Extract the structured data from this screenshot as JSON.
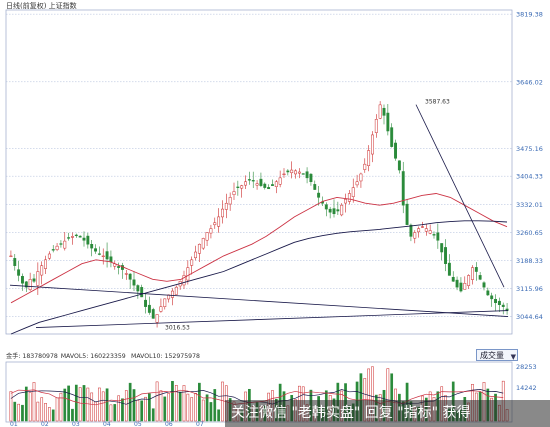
{
  "header": {
    "title": "日线(前复权)  上证指数"
  },
  "chart_data": [
    {
      "type": "candlestick",
      "title": "日线(前复权)  上证指数",
      "y_axis_ticks": [
        3819.38,
        3646.02,
        3475.16,
        3404.33,
        3332.01,
        3260.65,
        3188.33,
        3115.96,
        3044.64
      ],
      "ylim": [
        3000,
        3830
      ],
      "annotations": [
        {
          "text": "3587.63",
          "value": 3587.63
        },
        {
          "text": "3016.53",
          "value": 3016.53
        }
      ],
      "x_ticks": [
        "01",
        "02",
        "03",
        "04",
        "05",
        "06",
        "07"
      ],
      "candle_count": 130,
      "close_series_approx": [
        3200,
        3175,
        3150,
        3130,
        3120,
        3140,
        3135,
        3160,
        3175,
        3190,
        3205,
        3215,
        3225,
        3230,
        3238,
        3245,
        3250,
        3252,
        3248,
        3240,
        3230,
        3220,
        3212,
        3205,
        3200,
        3192,
        3185,
        3180,
        3170,
        3165,
        3155,
        3140,
        3125,
        3110,
        3095,
        3070,
        3055,
        3040,
        3050,
        3070,
        3090,
        3100,
        3110,
        3120,
        3135,
        3150,
        3170,
        3190,
        3210,
        3230,
        3245,
        3260,
        3270,
        3285,
        3300,
        3320,
        3335,
        3350,
        3365,
        3375,
        3380,
        3390,
        3395,
        3392,
        3385,
        3380,
        3375,
        3372,
        3380,
        3390,
        3400,
        3410,
        3415,
        3420,
        3418,
        3415,
        3410,
        3400,
        3390,
        3370,
        3350,
        3335,
        3320,
        3312,
        3308,
        3315,
        3330,
        3345,
        3360,
        3375,
        3390,
        3410,
        3435,
        3470,
        3510,
        3550,
        3587,
        3560,
        3520,
        3480,
        3450,
        3420,
        3330,
        3280,
        3250,
        3260,
        3270,
        3275,
        3270,
        3265,
        3255,
        3240,
        3210,
        3180,
        3150,
        3135,
        3120,
        3110,
        3130,
        3150,
        3170,
        3160,
        3140,
        3120,
        3100,
        3090,
        3080,
        3075,
        3070,
        3060
      ],
      "ma_lines": [
        {
          "color": "#cc3344",
          "approx": [
            3080,
            3100,
            3120,
            3140,
            3160,
            3180,
            3190,
            3185,
            3170,
            3155,
            3140,
            3135,
            3140,
            3160,
            3180,
            3200,
            3215,
            3230,
            3250,
            3275,
            3300,
            3320,
            3340,
            3350,
            3345,
            3335,
            3330,
            3335,
            3345,
            3355,
            3360,
            3350,
            3330,
            3310,
            3290,
            3275
          ]
        },
        {
          "color": "#1a1a4a",
          "approx": [
            3000,
            3015,
            3030,
            3040,
            3050,
            3060,
            3070,
            3080,
            3090,
            3100,
            3110,
            3120,
            3130,
            3140,
            3150,
            3160,
            3175,
            3190,
            3205,
            3220,
            3235,
            3245,
            3252,
            3258,
            3262,
            3265,
            3268,
            3272,
            3276,
            3280,
            3285,
            3288,
            3290,
            3290,
            3289,
            3287
          ]
        }
      ],
      "trend_lines": [
        {
          "from": 3016.53,
          "to": 3060
        },
        {
          "from": 3587.63,
          "to": 3120
        },
        {
          "from": 3125,
          "to": 3044.64
        }
      ]
    },
    {
      "type": "bar",
      "title": "",
      "legend": [
        {
          "label": "金手: 183780978",
          "color": "#1a1a4a"
        },
        {
          "label": "MAVOL5: 160223359",
          "color": "#1a1a4a"
        },
        {
          "label": "MAVOL10: 152975978",
          "color": "#cc3344"
        }
      ],
      "y_axis_ticks": [
        28253,
        14242
      ],
      "selector_label": "成交量"
    }
  ],
  "watermark": {
    "text": "关注微信  \"老韩实盘\" 回复  \"指标\" 获得"
  },
  "colors": {
    "up": "#cc2a2a",
    "down": "#2a8a3a",
    "ma_red": "#cc3344",
    "ma_dark": "#1a1a4a",
    "grid": "#aab8d8",
    "label": "#3a6ab4"
  }
}
